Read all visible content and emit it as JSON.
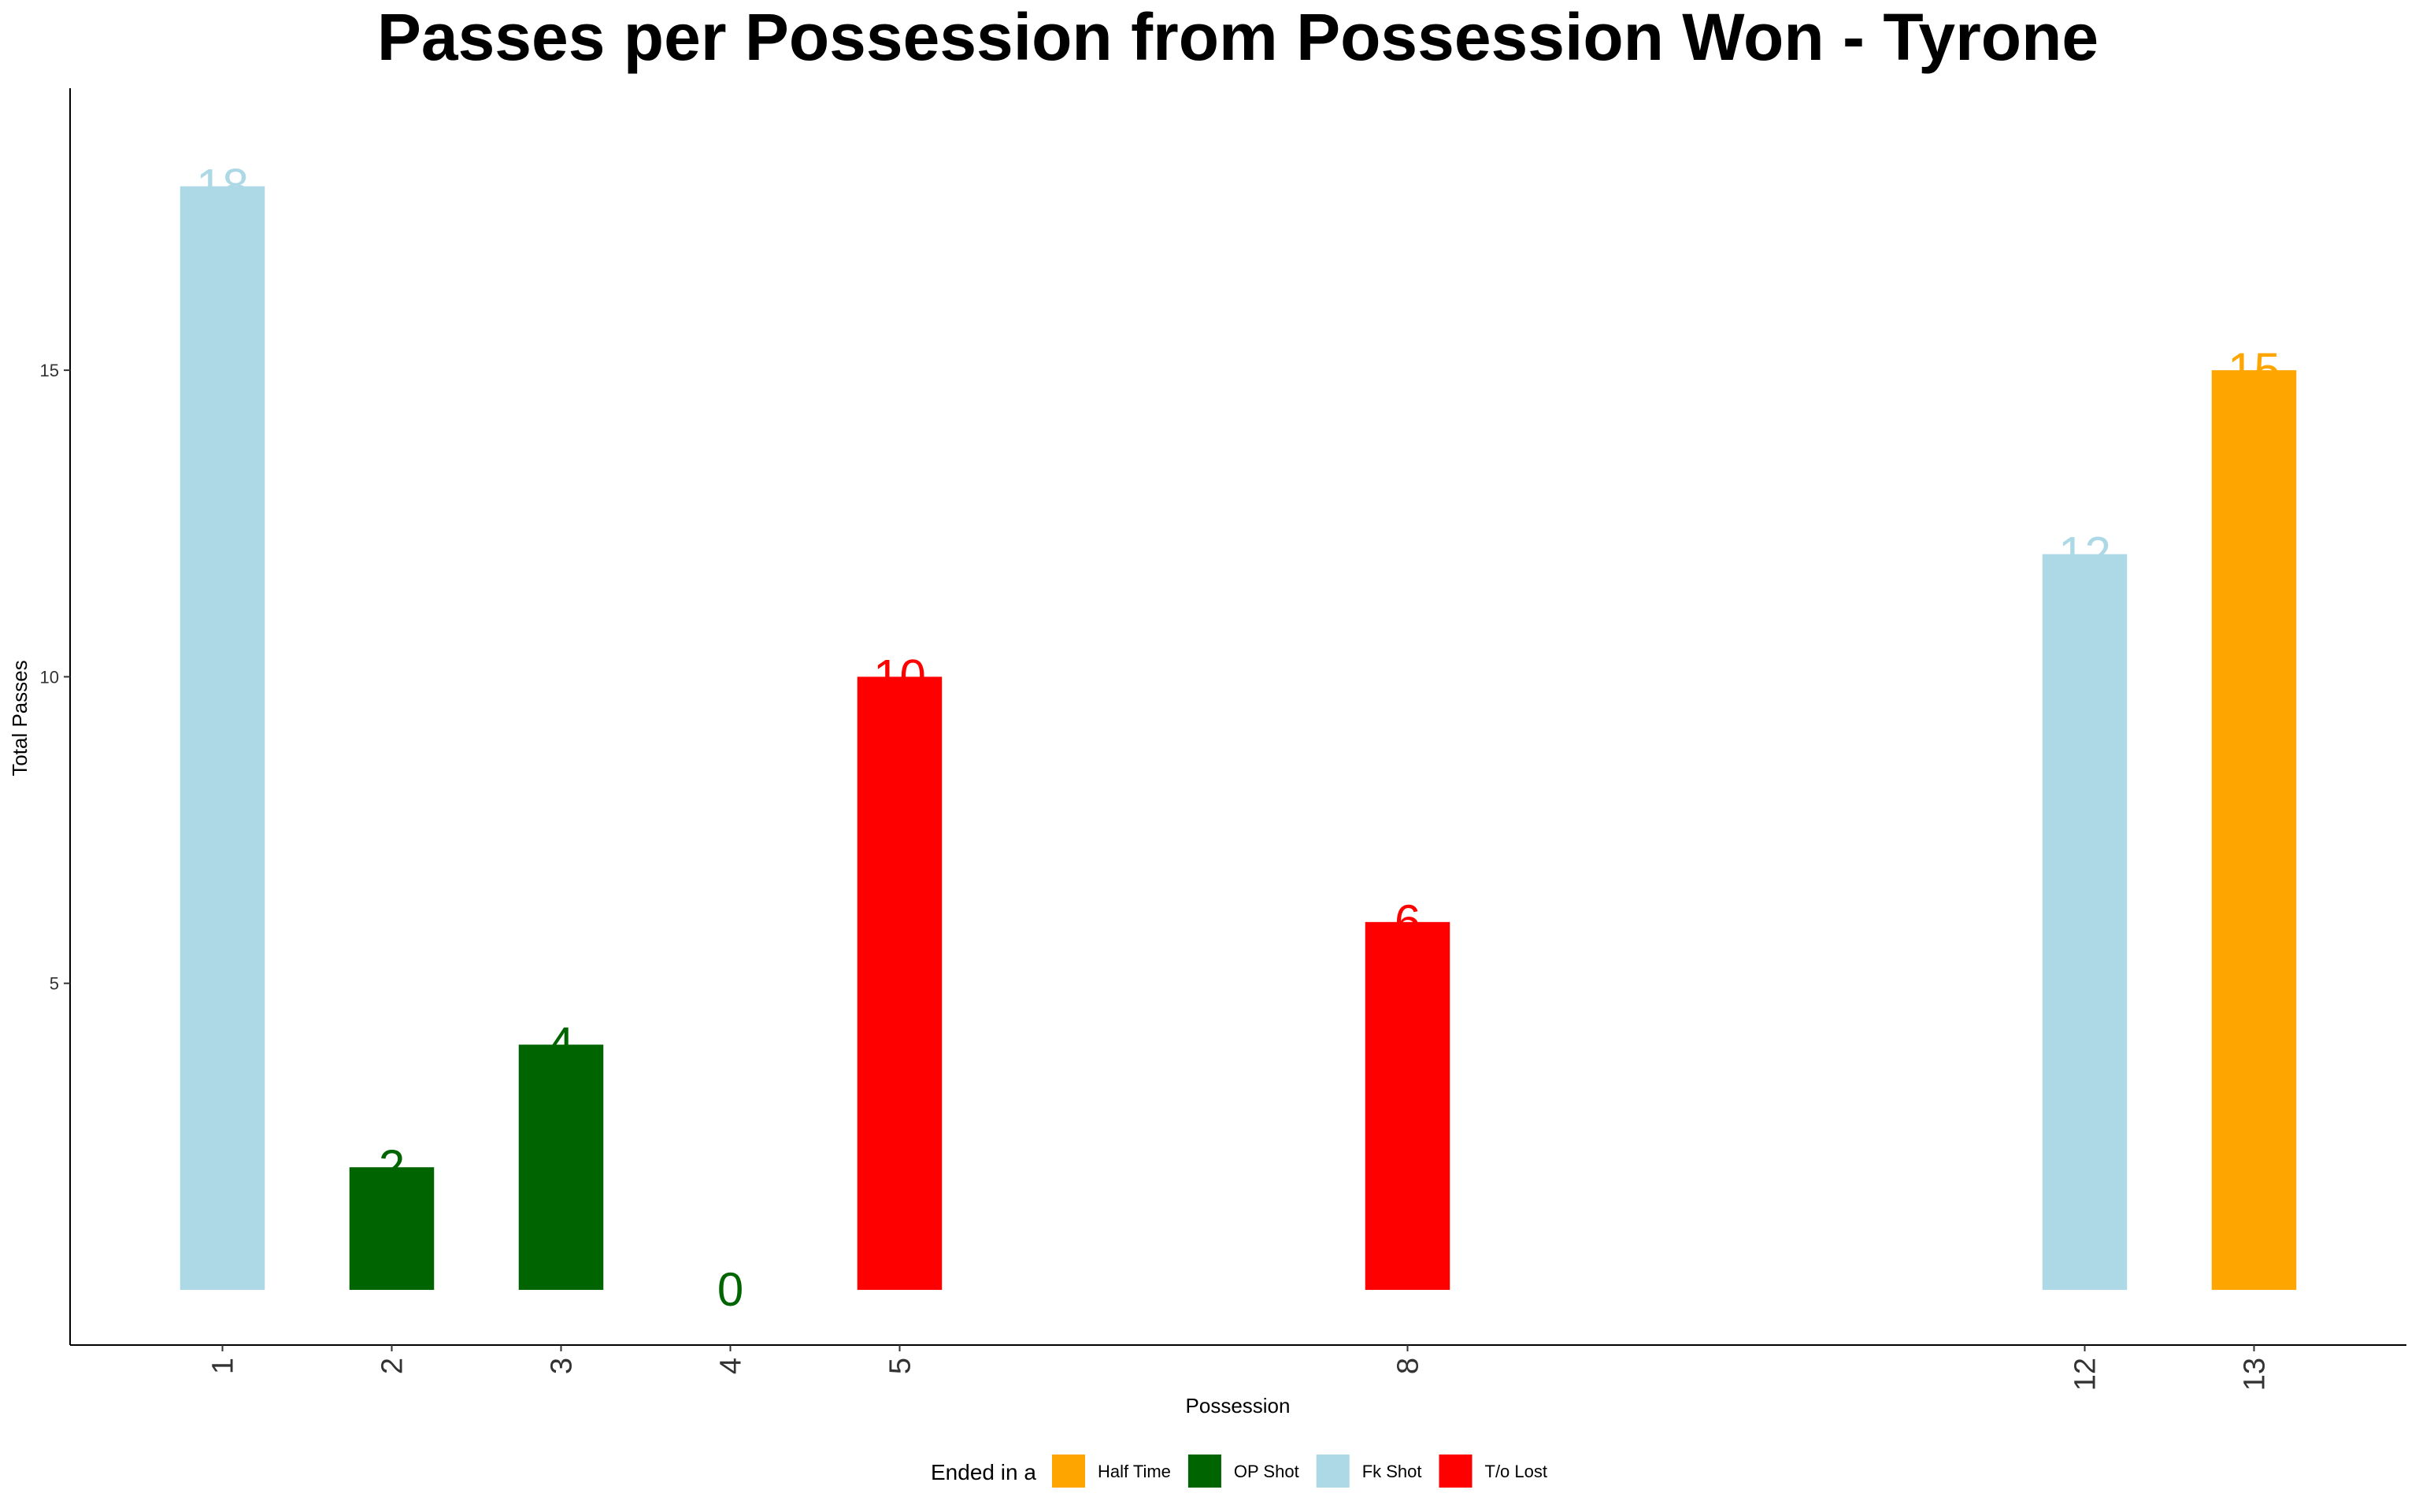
{
  "chart_data": {
    "type": "bar",
    "title": "Passes per Possession from Possession Won - Tyrone",
    "xlabel": "Possession",
    "ylabel": "Total Passes",
    "x_axis": "continuous",
    "xlim": [
      0.1,
      13.9
    ],
    "ylim": [
      -0.9,
      19.6
    ],
    "y_ticks": [
      5,
      10,
      15
    ],
    "x_ticks": [
      1,
      2,
      3,
      4,
      5,
      8,
      12,
      13
    ],
    "grid": false,
    "legend": {
      "title": "Ended in a",
      "position": "bottom",
      "entries": [
        {
          "key": "half_time",
          "label": "Half Time",
          "color": "#FFA500"
        },
        {
          "key": "op_shot",
          "label": "OP Shot",
          "color": "#006400"
        },
        {
          "key": "fk_shot",
          "label": "Fk Shot",
          "color": "#ADD8E6"
        },
        {
          "key": "to_lost",
          "label": "T/o Lost",
          "color": "#FF0000"
        }
      ]
    },
    "bars": [
      {
        "x": 1,
        "value": 18,
        "ended_in": "fk_shot"
      },
      {
        "x": 2,
        "value": 2,
        "ended_in": "op_shot"
      },
      {
        "x": 3,
        "value": 4,
        "ended_in": "op_shot"
      },
      {
        "x": 4,
        "value": 0,
        "ended_in": "op_shot"
      },
      {
        "x": 5,
        "value": 10,
        "ended_in": "to_lost"
      },
      {
        "x": 8,
        "value": 6,
        "ended_in": "to_lost"
      },
      {
        "x": 12,
        "value": 12,
        "ended_in": "fk_shot"
      },
      {
        "x": 13,
        "value": 15,
        "ended_in": "half_time"
      }
    ]
  }
}
